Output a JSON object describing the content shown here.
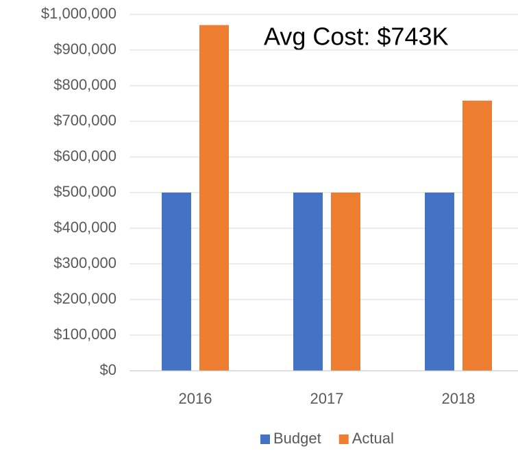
{
  "chart_data": {
    "type": "bar",
    "annotation": "Avg Cost: $743K",
    "categories": [
      "2016",
      "2017",
      "2018"
    ],
    "series": [
      {
        "name": "Budget",
        "color": "#4472c4",
        "values": [
          500000,
          500000,
          500000
        ]
      },
      {
        "name": "Actual",
        "color": "#ed7d31",
        "values": [
          970000,
          500000,
          758000
        ]
      }
    ],
    "ylim": [
      0,
      1000000
    ],
    "yticks": [
      {
        "value": 0,
        "label": "$0"
      },
      {
        "value": 100000,
        "label": "$100,000"
      },
      {
        "value": 200000,
        "label": "$200,000"
      },
      {
        "value": 300000,
        "label": "$300,000"
      },
      {
        "value": 400000,
        "label": "$400,000"
      },
      {
        "value": 500000,
        "label": "$500,000"
      },
      {
        "value": 600000,
        "label": "$600,000"
      },
      {
        "value": 700000,
        "label": "$700,000"
      },
      {
        "value": 800000,
        "label": "$800,000"
      },
      {
        "value": 900000,
        "label": "$900,000"
      },
      {
        "value": 1000000,
        "label": "$1,000,000"
      }
    ],
    "grid": true,
    "legend": "bottom"
  }
}
